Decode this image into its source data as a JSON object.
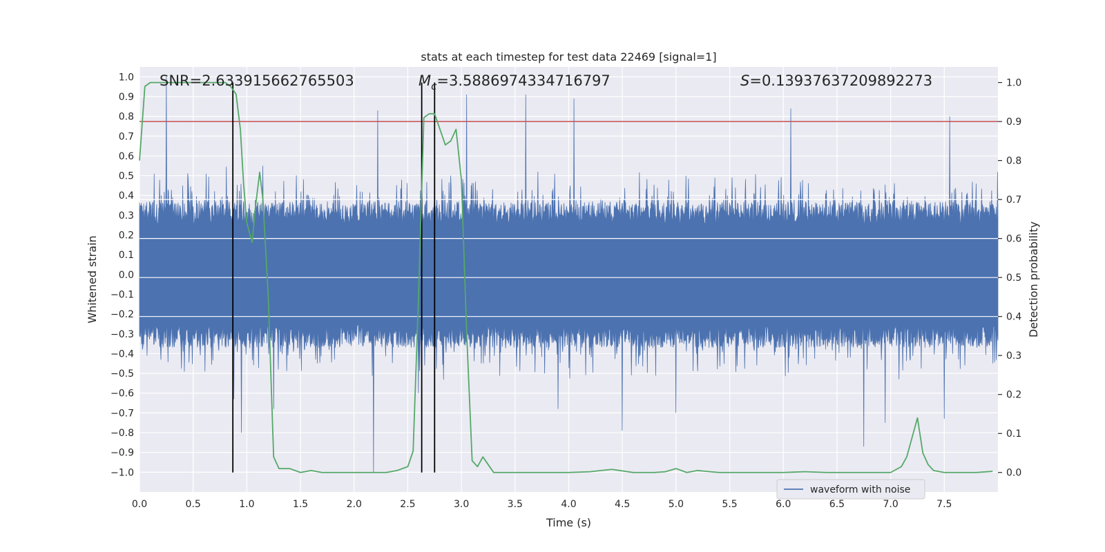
{
  "chart_data": {
    "type": "line",
    "title": "stats at each timestep for test data 22469 [signal=1]",
    "xlabel": "Time (s)",
    "ylabel_left": "Whitened strain",
    "ylabel_right": "Detection probability",
    "xlim": [
      0.0,
      8.0
    ],
    "ylim_left": [
      -1.1,
      1.05
    ],
    "ylim_right": [
      -0.05,
      1.04
    ],
    "x_ticks": [
      0.0,
      0.5,
      1.0,
      1.5,
      2.0,
      2.5,
      3.0,
      3.5,
      4.0,
      4.5,
      5.0,
      5.5,
      6.0,
      6.5,
      7.0,
      7.5
    ],
    "x_tick_labels": [
      "0.0",
      "0.5",
      "1.0",
      "1.5",
      "2.0",
      "2.5",
      "3.0",
      "3.5",
      "4.0",
      "4.5",
      "5.0",
      "5.5",
      "6.0",
      "6.5",
      "7.0",
      "7.5"
    ],
    "y_left_ticks": [
      1.0,
      0.9,
      0.8,
      0.7,
      0.6,
      0.5,
      0.4,
      0.3,
      0.2,
      0.1,
      0.0,
      -0.1,
      -0.2,
      -0.3,
      -0.4,
      -0.5,
      -0.6,
      -0.7,
      -0.8,
      -0.9,
      -1.0
    ],
    "y_left_tick_labels": [
      "1.0",
      "0.9",
      "0.8",
      "0.7",
      "0.6",
      "0.5",
      "0.4",
      "0.3",
      "0.2",
      "0.1",
      "0.0",
      "−0.1",
      "−0.2",
      "−0.3",
      "−0.4",
      "−0.5",
      "−0.6",
      "−0.7",
      "−0.8",
      "−0.9",
      "−1.0"
    ],
    "y_right_ticks": [
      1.0,
      0.9,
      0.8,
      0.7,
      0.6,
      0.5,
      0.4,
      0.3,
      0.2,
      0.1,
      0.0
    ],
    "y_right_tick_labels": [
      "1.0",
      "0.9",
      "0.8",
      "0.7",
      "0.6",
      "0.5",
      "0.4",
      "0.3",
      "0.2",
      "0.1",
      "0.0"
    ],
    "annotations": {
      "snr": "SNR=2.633915662765503",
      "mc_symbol": "M",
      "mc_sub": "c",
      "mc_value": "=3.5886974334716797",
      "s_symbol": "S",
      "s_value": "=0.13937637209892273"
    },
    "threshold": {
      "axis": "right",
      "value": 0.9,
      "color": "#c44e52"
    },
    "vertical_lines": [
      0.87,
      2.63,
      2.75
    ],
    "waveform": {
      "name": "waveform with noise",
      "color": "#4c72b0",
      "x_range": [
        0.0,
        8.0
      ],
      "samples": 2048,
      "typical_envelope": [
        -0.35,
        0.38
      ],
      "seed": 22469,
      "spikes": [
        {
          "x": 0.25,
          "y": 1.0
        },
        {
          "x": 0.88,
          "y": -0.63
        },
        {
          "x": 0.95,
          "y": -0.8
        },
        {
          "x": 1.15,
          "y": 0.55
        },
        {
          "x": 1.25,
          "y": -0.68
        },
        {
          "x": 2.18,
          "y": -1.0
        },
        {
          "x": 2.22,
          "y": 0.83
        },
        {
          "x": 2.6,
          "y": -0.6
        },
        {
          "x": 2.9,
          "y": 0.5
        },
        {
          "x": 3.05,
          "y": 0.91
        },
        {
          "x": 3.6,
          "y": 0.91
        },
        {
          "x": 3.9,
          "y": -0.68
        },
        {
          "x": 4.05,
          "y": 0.89
        },
        {
          "x": 4.5,
          "y": -0.79
        },
        {
          "x": 5.0,
          "y": -0.7
        },
        {
          "x": 6.07,
          "y": 0.84
        },
        {
          "x": 6.75,
          "y": -0.87
        },
        {
          "x": 6.95,
          "y": -0.75
        },
        {
          "x": 7.5,
          "y": -0.73
        },
        {
          "x": 7.55,
          "y": 0.8
        }
      ]
    },
    "probability": {
      "name": "detection probability",
      "color": "#55a868",
      "x": [
        0.0,
        0.05,
        0.1,
        0.2,
        0.3,
        0.4,
        0.5,
        0.6,
        0.7,
        0.8,
        0.85,
        0.9,
        0.94,
        0.97,
        1.0,
        1.05,
        1.08,
        1.12,
        1.15,
        1.2,
        1.25,
        1.3,
        1.4,
        1.5,
        1.6,
        1.7,
        1.8,
        1.9,
        2.0,
        2.1,
        2.2,
        2.3,
        2.4,
        2.5,
        2.55,
        2.6,
        2.65,
        2.7,
        2.75,
        2.8,
        2.85,
        2.9,
        2.95,
        3.0,
        3.05,
        3.1,
        3.15,
        3.2,
        3.25,
        3.3,
        3.35,
        3.4,
        3.6,
        3.8,
        4.0,
        4.2,
        4.4,
        4.6,
        4.8,
        4.9,
        5.0,
        5.1,
        5.2,
        5.4,
        5.6,
        5.8,
        6.0,
        6.2,
        6.4,
        6.6,
        6.8,
        6.9,
        7.0,
        7.1,
        7.15,
        7.2,
        7.25,
        7.3,
        7.35,
        7.4,
        7.5,
        7.6,
        7.8,
        7.95
      ],
      "values": [
        0.8,
        0.99,
        1.0,
        1.0,
        1.0,
        1.0,
        1.0,
        1.0,
        1.0,
        1.0,
        0.99,
        0.97,
        0.88,
        0.74,
        0.64,
        0.59,
        0.68,
        0.77,
        0.7,
        0.45,
        0.04,
        0.01,
        0.01,
        0.0,
        0.005,
        0.0,
        0.0,
        0.0,
        0.0,
        0.0,
        0.0,
        0.0,
        0.005,
        0.015,
        0.055,
        0.45,
        0.91,
        0.92,
        0.92,
        0.88,
        0.84,
        0.85,
        0.88,
        0.75,
        0.35,
        0.03,
        0.015,
        0.04,
        0.02,
        0.0,
        0.0,
        0.0,
        0.0,
        0.0,
        0.0,
        0.002,
        0.008,
        0.0,
        0.0,
        0.002,
        0.01,
        0.0,
        0.005,
        0.0,
        0.0,
        0.0,
        0.0,
        0.002,
        0.0,
        0.0,
        0.0,
        0.0,
        0.0,
        0.015,
        0.04,
        0.09,
        0.14,
        0.05,
        0.02,
        0.005,
        0.0,
        0.0,
        0.0,
        0.003
      ]
    },
    "legend": {
      "placement": "bottom-right",
      "entries": [
        {
          "label": "waveform with noise",
          "color": "#4c72b0"
        }
      ]
    },
    "grid": true
  }
}
